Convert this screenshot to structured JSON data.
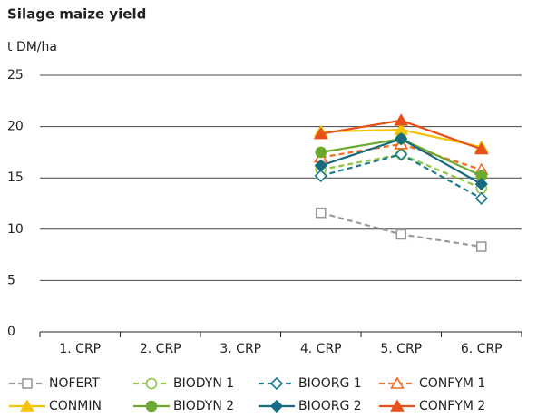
{
  "chart_data": {
    "type": "line",
    "title": "Silage maize yield",
    "y_label": "t DM/ha",
    "categories": [
      "1. CRP",
      "2. CRP",
      "3. CRP",
      "4. CRP",
      "5. CRP",
      "6. CRP"
    ],
    "ylim": [
      0,
      25
    ],
    "yticks": [
      0,
      5,
      10,
      15,
      20,
      25
    ],
    "grid": true,
    "legend": "bottom",
    "series": [
      {
        "name": "NOFERT",
        "color": "#9a9a9a",
        "marker": "square",
        "filled": false,
        "dashed": true,
        "values": [
          null,
          null,
          null,
          11.6,
          9.5,
          8.3
        ]
      },
      {
        "name": "BIODYN 1",
        "color": "#8dc63f",
        "marker": "circle",
        "filled": false,
        "dashed": true,
        "values": [
          null,
          null,
          null,
          15.8,
          17.3,
          14.0
        ]
      },
      {
        "name": "BIOORG 1",
        "color": "#1b7a8c",
        "marker": "diamond",
        "filled": false,
        "dashed": true,
        "values": [
          null,
          null,
          null,
          15.2,
          17.3,
          13.0
        ]
      },
      {
        "name": "CONFYM 1",
        "color": "#f26b21",
        "marker": "triangle",
        "filled": false,
        "dashed": true,
        "values": [
          null,
          null,
          null,
          17.0,
          18.3,
          15.8
        ]
      },
      {
        "name": "CONMIN",
        "color": "#f5c400",
        "marker": "triangle",
        "filled": true,
        "dashed": false,
        "values": [
          null,
          null,
          null,
          19.5,
          19.7,
          18.0
        ]
      },
      {
        "name": "BIODYN 2",
        "color": "#6aaa2e",
        "marker": "circle",
        "filled": true,
        "dashed": false,
        "values": [
          null,
          null,
          null,
          17.5,
          18.8,
          15.2
        ]
      },
      {
        "name": "BIOORG 2",
        "color": "#166b80",
        "marker": "diamond",
        "filled": true,
        "dashed": false,
        "values": [
          null,
          null,
          null,
          16.2,
          18.8,
          14.4
        ]
      },
      {
        "name": "CONFYM 2",
        "color": "#e8501a",
        "marker": "triangle",
        "filled": true,
        "dashed": false,
        "values": [
          null,
          null,
          null,
          19.3,
          20.6,
          17.8
        ]
      }
    ]
  }
}
